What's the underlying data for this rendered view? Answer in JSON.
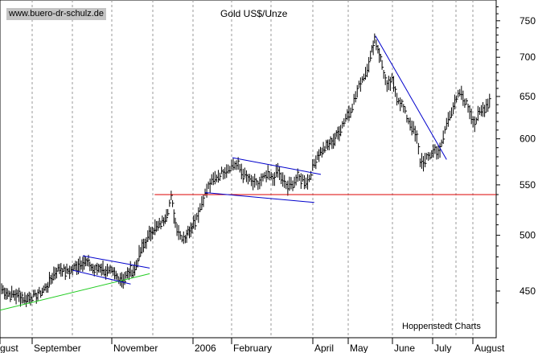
{
  "watermark": "www.buero-dr-schulz.de",
  "source": "Hoppenstedt Charts",
  "colors": {
    "background": "#ffffff",
    "bars": "#000000",
    "channel_lines": "#0000cc",
    "support_line": "#dd0000",
    "uptrend_line": "#22cc22",
    "grid": "#999999",
    "watermark_bg": "#c4c4c4"
  },
  "chart_data": {
    "type": "ohlc",
    "title": "Gold US$/Unze",
    "y_scale": "log",
    "ylim": [
      412,
      780
    ],
    "yticks": [
      450,
      500,
      550,
      600,
      650,
      700,
      750
    ],
    "ytick_labels": [
      "450",
      "500",
      "550",
      "600",
      "650",
      "700",
      "750"
    ],
    "x_labels": [
      "gust",
      "September",
      "November",
      "2006",
      "February",
      "April",
      "May",
      "June",
      "July",
      "August"
    ],
    "grid": "vertical dashed",
    "weekly_points": [
      {
        "x": 2,
        "y": 452
      },
      {
        "x": 9,
        "y": 448
      },
      {
        "x": 16,
        "y": 447
      },
      {
        "x": 23,
        "y": 446
      },
      {
        "x": 30,
        "y": 443
      },
      {
        "x": 37,
        "y": 445
      },
      {
        "x": 44,
        "y": 446
      },
      {
        "x": 51,
        "y": 450
      },
      {
        "x": 58,
        "y": 455
      },
      {
        "x": 65,
        "y": 465
      },
      {
        "x": 72,
        "y": 470
      },
      {
        "x": 79,
        "y": 467
      },
      {
        "x": 86,
        "y": 468
      },
      {
        "x": 93,
        "y": 472
      },
      {
        "x": 100,
        "y": 476
      },
      {
        "x": 107,
        "y": 474
      },
      {
        "x": 114,
        "y": 468
      },
      {
        "x": 121,
        "y": 471
      },
      {
        "x": 128,
        "y": 467
      },
      {
        "x": 135,
        "y": 466
      },
      {
        "x": 142,
        "y": 462
      },
      {
        "x": 149,
        "y": 460
      },
      {
        "x": 156,
        "y": 466
      },
      {
        "x": 163,
        "y": 469
      },
      {
        "x": 170,
        "y": 485
      },
      {
        "x": 177,
        "y": 495
      },
      {
        "x": 184,
        "y": 505
      },
      {
        "x": 191,
        "y": 508
      },
      {
        "x": 198,
        "y": 515
      },
      {
        "x": 203,
        "y": 525
      },
      {
        "x": 207,
        "y": 537
      },
      {
        "x": 212,
        "y": 512
      },
      {
        "x": 218,
        "y": 500
      },
      {
        "x": 224,
        "y": 498
      },
      {
        "x": 229,
        "y": 505
      },
      {
        "x": 234,
        "y": 512
      },
      {
        "x": 240,
        "y": 522
      },
      {
        "x": 246,
        "y": 537
      },
      {
        "x": 252,
        "y": 548
      },
      {
        "x": 258,
        "y": 555
      },
      {
        "x": 264,
        "y": 560
      },
      {
        "x": 270,
        "y": 564
      },
      {
        "x": 276,
        "y": 568
      },
      {
        "x": 282,
        "y": 572
      },
      {
        "x": 288,
        "y": 570
      },
      {
        "x": 294,
        "y": 562
      },
      {
        "x": 300,
        "y": 556
      },
      {
        "x": 306,
        "y": 552
      },
      {
        "x": 312,
        "y": 550
      },
      {
        "x": 318,
        "y": 556
      },
      {
        "x": 324,
        "y": 560
      },
      {
        "x": 330,
        "y": 556
      },
      {
        "x": 336,
        "y": 565
      },
      {
        "x": 342,
        "y": 554
      },
      {
        "x": 348,
        "y": 547
      },
      {
        "x": 354,
        "y": 552
      },
      {
        "x": 360,
        "y": 557
      },
      {
        "x": 366,
        "y": 556
      },
      {
        "x": 372,
        "y": 553
      },
      {
        "x": 378,
        "y": 568
      },
      {
        "x": 384,
        "y": 582
      },
      {
        "x": 391,
        "y": 588
      },
      {
        "x": 398,
        "y": 594
      },
      {
        "x": 405,
        "y": 600
      },
      {
        "x": 412,
        "y": 612
      },
      {
        "x": 418,
        "y": 625
      },
      {
        "x": 424,
        "y": 634
      },
      {
        "x": 430,
        "y": 650
      },
      {
        "x": 436,
        "y": 668
      },
      {
        "x": 442,
        "y": 680
      },
      {
        "x": 448,
        "y": 700
      },
      {
        "x": 453,
        "y": 725
      },
      {
        "x": 457,
        "y": 712
      },
      {
        "x": 462,
        "y": 690
      },
      {
        "x": 468,
        "y": 660
      },
      {
        "x": 474,
        "y": 670
      },
      {
        "x": 480,
        "y": 650
      },
      {
        "x": 486,
        "y": 640
      },
      {
        "x": 492,
        "y": 625
      },
      {
        "x": 498,
        "y": 615
      },
      {
        "x": 504,
        "y": 600
      },
      {
        "x": 508,
        "y": 575
      },
      {
        "x": 514,
        "y": 575
      },
      {
        "x": 520,
        "y": 582
      },
      {
        "x": 526,
        "y": 588
      },
      {
        "x": 532,
        "y": 585
      },
      {
        "x": 538,
        "y": 610
      },
      {
        "x": 544,
        "y": 630
      },
      {
        "x": 550,
        "y": 640
      },
      {
        "x": 556,
        "y": 655
      },
      {
        "x": 562,
        "y": 645
      },
      {
        "x": 568,
        "y": 633
      },
      {
        "x": 574,
        "y": 618
      },
      {
        "x": 580,
        "y": 630
      },
      {
        "x": 586,
        "y": 636
      },
      {
        "x": 592,
        "y": 645
      }
    ],
    "annotations": [
      {
        "type": "support_line",
        "color": "#dd0000",
        "level": 540
      },
      {
        "type": "uptrend_line",
        "color": "#22cc22",
        "points": [
          [
            0,
            434
          ],
          [
            181,
            465
          ]
        ]
      },
      {
        "type": "channel_line",
        "color": "#0000cc",
        "points": [
          [
            100,
            481
          ],
          [
            181,
            470
          ]
        ]
      },
      {
        "type": "channel_line",
        "color": "#0000cc",
        "points": [
          [
            88,
            468
          ],
          [
            158,
            456
          ]
        ]
      },
      {
        "type": "channel_line",
        "color": "#0000cc",
        "points": [
          [
            281,
            579
          ],
          [
            388,
            561
          ]
        ]
      },
      {
        "type": "channel_line",
        "color": "#0000cc",
        "points": [
          [
            248,
            542
          ],
          [
            380,
            532
          ]
        ]
      },
      {
        "type": "trend_line",
        "color": "#0000cc",
        "points": [
          [
            454,
            729
          ],
          [
            540,
            577
          ]
        ]
      }
    ]
  }
}
